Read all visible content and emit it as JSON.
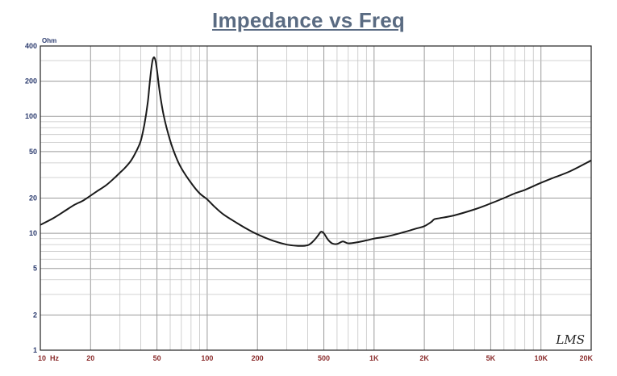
{
  "title": "Impedance vs Freq",
  "chart_data": {
    "type": "line",
    "title": "Impedance vs Freq",
    "xlabel": "",
    "ylabel": "",
    "y_unit": "Ohm",
    "x_scale": "log",
    "y_scale": "log",
    "xlim": [
      10,
      20000
    ],
    "ylim": [
      1,
      400
    ],
    "grid": true,
    "x_ticks": [
      {
        "value": 10,
        "label": "10  Hz"
      },
      {
        "value": 20,
        "label": "20"
      },
      {
        "value": 50,
        "label": "50"
      },
      {
        "value": 100,
        "label": "100"
      },
      {
        "value": 200,
        "label": "200"
      },
      {
        "value": 500,
        "label": "500"
      },
      {
        "value": 1000,
        "label": "1K"
      },
      {
        "value": 2000,
        "label": "2K"
      },
      {
        "value": 5000,
        "label": "5K"
      },
      {
        "value": 10000,
        "label": "10K"
      },
      {
        "value": 20000,
        "label": "20K"
      }
    ],
    "y_ticks": [
      {
        "value": 400,
        "label": "400"
      },
      {
        "value": 200,
        "label": "200"
      },
      {
        "value": 100,
        "label": "100"
      },
      {
        "value": 50,
        "label": "50"
      },
      {
        "value": 20,
        "label": "20"
      },
      {
        "value": 10,
        "label": "10"
      },
      {
        "value": 5,
        "label": "5"
      },
      {
        "value": 2,
        "label": "2"
      },
      {
        "value": 1,
        "label": "1"
      }
    ],
    "series": [
      {
        "color": "#1a1a1a",
        "points": [
          [
            10,
            11.8
          ],
          [
            12,
            13.5
          ],
          [
            14,
            15.5
          ],
          [
            16,
            17.5
          ],
          [
            18,
            19
          ],
          [
            20,
            21
          ],
          [
            22,
            23
          ],
          [
            25,
            26
          ],
          [
            28,
            30
          ],
          [
            30,
            33
          ],
          [
            32,
            36
          ],
          [
            35,
            42
          ],
          [
            38,
            52
          ],
          [
            40,
            62
          ],
          [
            42,
            85
          ],
          [
            44,
            130
          ],
          [
            45,
            180
          ],
          [
            46,
            240
          ],
          [
            47,
            300
          ],
          [
            48,
            320
          ],
          [
            49,
            300
          ],
          [
            50,
            250
          ],
          [
            52,
            160
          ],
          [
            55,
            100
          ],
          [
            60,
            62
          ],
          [
            65,
            45
          ],
          [
            70,
            36
          ],
          [
            80,
            27
          ],
          [
            90,
            22
          ],
          [
            100,
            19.5
          ],
          [
            110,
            17
          ],
          [
            125,
            14.5
          ],
          [
            150,
            12.3
          ],
          [
            175,
            10.8
          ],
          [
            200,
            9.8
          ],
          [
            250,
            8.6
          ],
          [
            300,
            8
          ],
          [
            350,
            7.8
          ],
          [
            400,
            7.9
          ],
          [
            430,
            8.5
          ],
          [
            460,
            9.5
          ],
          [
            480,
            10.3
          ],
          [
            500,
            10
          ],
          [
            530,
            8.8
          ],
          [
            560,
            8.2
          ],
          [
            600,
            8.1
          ],
          [
            650,
            8.5
          ],
          [
            700,
            8.2
          ],
          [
            800,
            8.4
          ],
          [
            900,
            8.7
          ],
          [
            1000,
            9
          ],
          [
            1200,
            9.4
          ],
          [
            1500,
            10.2
          ],
          [
            1800,
            11
          ],
          [
            2000,
            11.5
          ],
          [
            2200,
            12.5
          ],
          [
            2300,
            13.2
          ],
          [
            2500,
            13.5
          ],
          [
            3000,
            14.2
          ],
          [
            4000,
            16
          ],
          [
            5000,
            18
          ],
          [
            6000,
            20
          ],
          [
            7000,
            22
          ],
          [
            8000,
            23.5
          ],
          [
            10000,
            27
          ],
          [
            12000,
            30
          ],
          [
            15000,
            34
          ],
          [
            20000,
            42
          ]
        ]
      }
    ],
    "watermark": "LMS"
  }
}
